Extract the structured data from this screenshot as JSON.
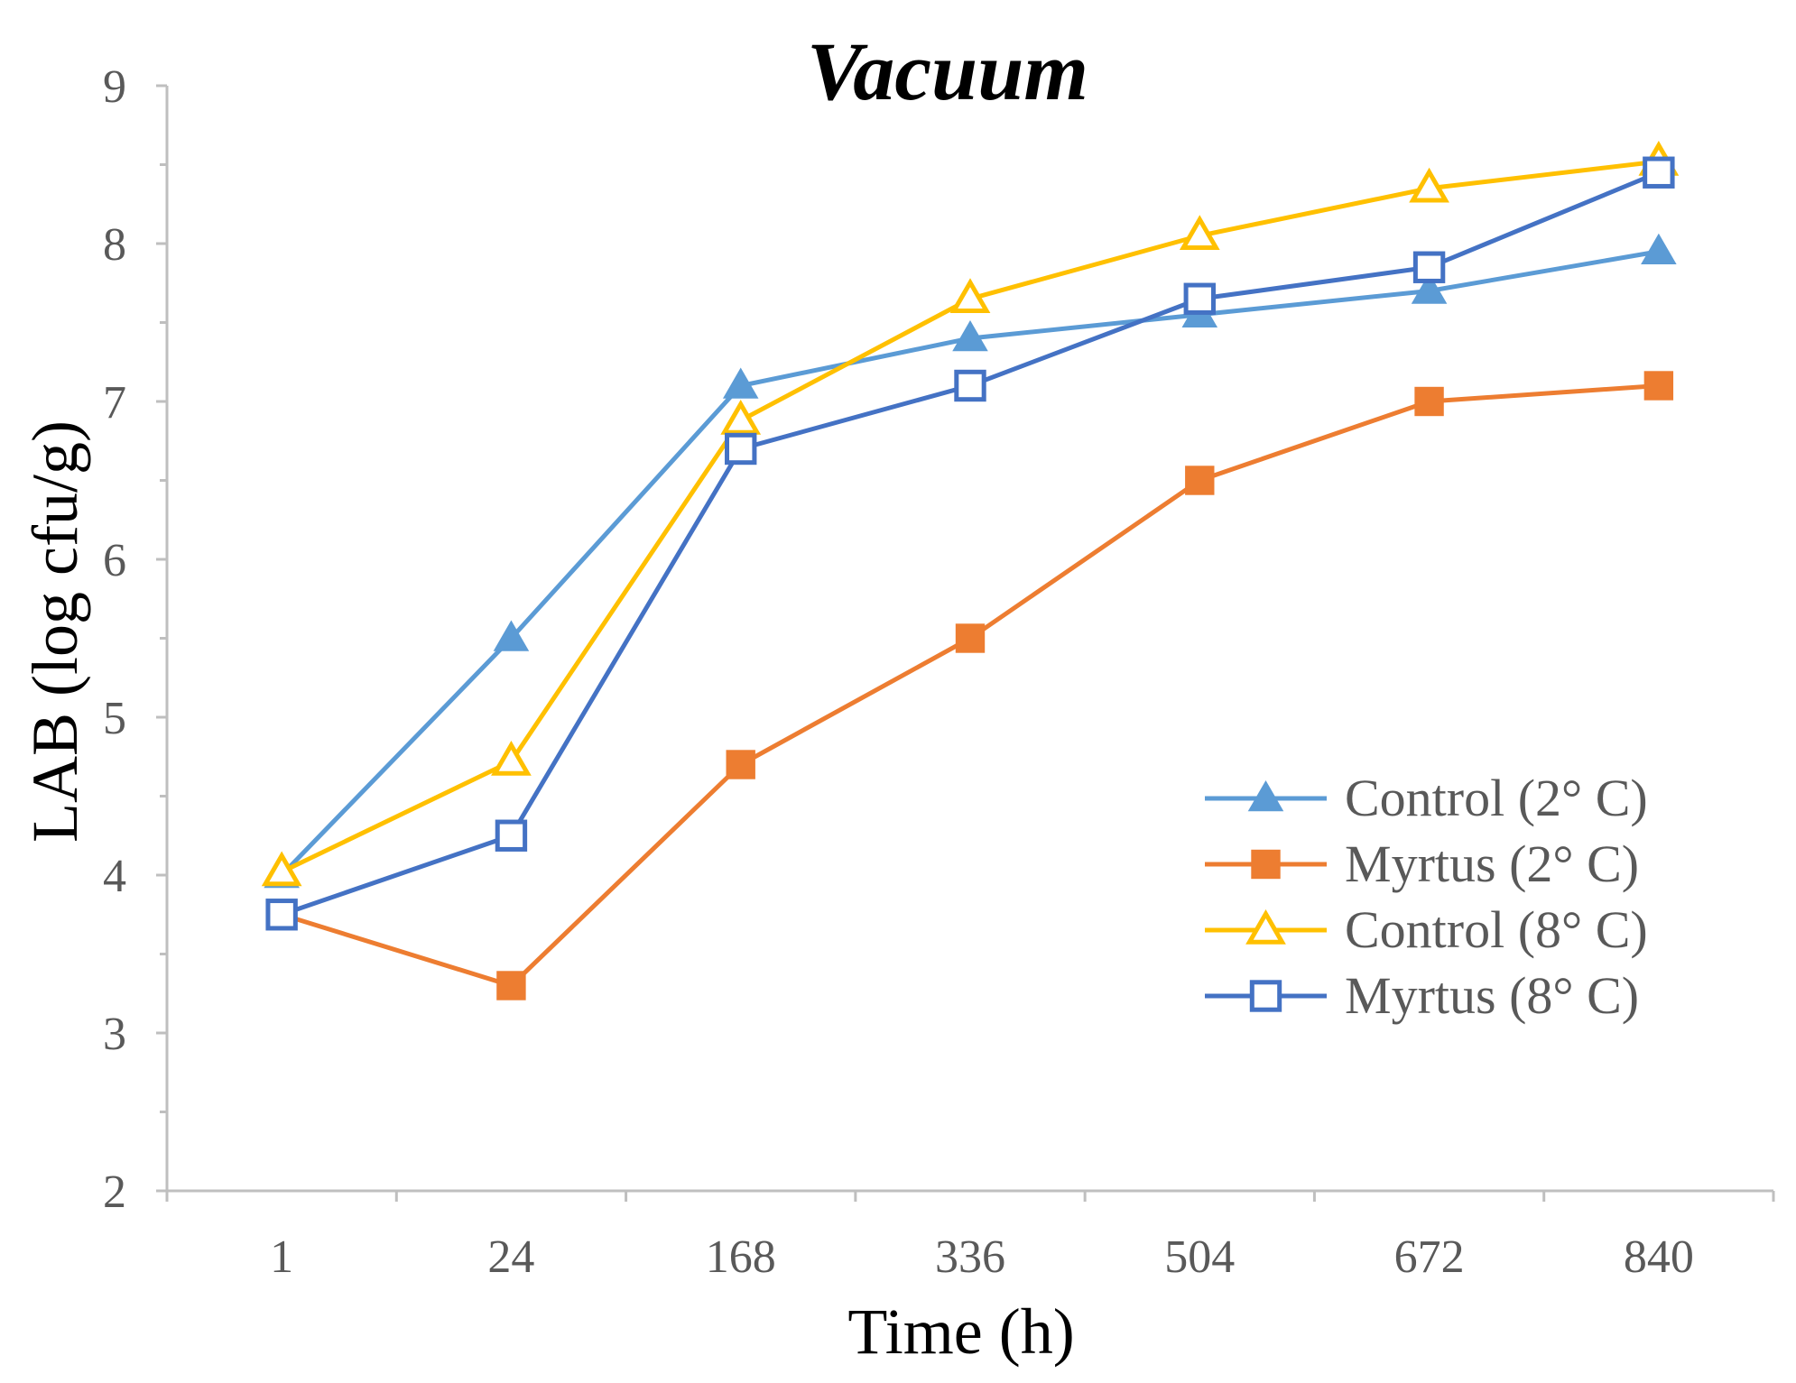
{
  "chart_data": {
    "type": "line",
    "title": "Vacuum",
    "xlabel": "Time (h)",
    "ylabel": "LAB (log cfu/g)",
    "categories": [
      "1",
      "24",
      "168",
      "336",
      "504",
      "672",
      "840"
    ],
    "ylim": [
      2,
      9
    ],
    "yticks": [
      "2",
      "3",
      "4",
      "5",
      "6",
      "7",
      "8",
      "9"
    ],
    "grid": false,
    "legend_position": "right",
    "series": [
      {
        "name": "Control (2° C)",
        "marker": "filled-triangle",
        "color": "#5B9BD5",
        "values": [
          4.0,
          5.5,
          7.1,
          7.4,
          7.55,
          7.7,
          7.95
        ]
      },
      {
        "name": "Myrtus (2° C)",
        "marker": "filled-square",
        "color": "#ED7D31",
        "values": [
          3.75,
          3.3,
          4.7,
          5.5,
          6.5,
          7.0,
          7.1
        ]
      },
      {
        "name": "Control (8° C)",
        "marker": "hollow-triangle",
        "color": "#FFC000",
        "values": [
          4.02,
          4.72,
          6.88,
          7.65,
          8.05,
          8.35,
          8.52
        ]
      },
      {
        "name": "Myrtus (8° C)",
        "marker": "hollow-square",
        "color": "#4472C4",
        "values": [
          3.75,
          4.25,
          6.7,
          7.1,
          7.65,
          7.85,
          8.45
        ]
      }
    ]
  }
}
